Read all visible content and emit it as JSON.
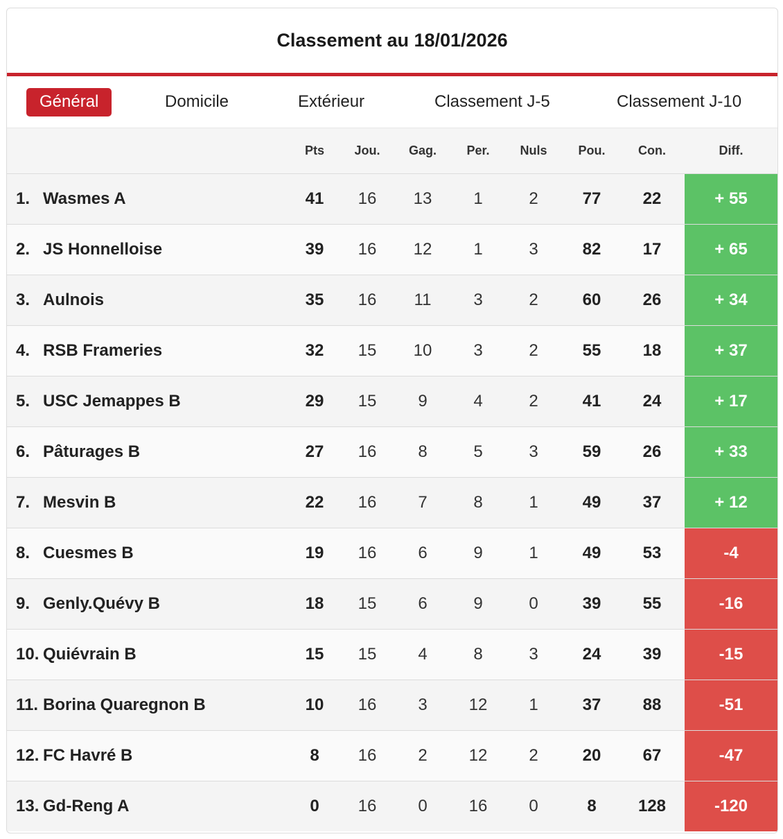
{
  "header": {
    "title": "Classement au 18/01/2026"
  },
  "tabs": [
    {
      "label": "Général",
      "active": true
    },
    {
      "label": "Domicile",
      "active": false
    },
    {
      "label": "Extérieur",
      "active": false
    },
    {
      "label": "Classement J-5",
      "active": false
    },
    {
      "label": "Classement J-10",
      "active": false
    }
  ],
  "colors": {
    "accent": "#c8232c",
    "positive": "#5cc266",
    "negative": "#de4e49"
  },
  "table": {
    "columns": [
      "Pts",
      "Jou.",
      "Gag.",
      "Per.",
      "Nuls",
      "Pou.",
      "Con.",
      "Diff."
    ],
    "rows": [
      {
        "rank": "1.",
        "team": "Wasmes A",
        "pts": "41",
        "jou": "16",
        "gag": "13",
        "per": "1",
        "nuls": "2",
        "pou": "77",
        "con": "22",
        "diff": "+ 55",
        "sign": "pos"
      },
      {
        "rank": "2.",
        "team": "JS Honnelloise",
        "pts": "39",
        "jou": "16",
        "gag": "12",
        "per": "1",
        "nuls": "3",
        "pou": "82",
        "con": "17",
        "diff": "+ 65",
        "sign": "pos"
      },
      {
        "rank": "3.",
        "team": "Aulnois",
        "pts": "35",
        "jou": "16",
        "gag": "11",
        "per": "3",
        "nuls": "2",
        "pou": "60",
        "con": "26",
        "diff": "+ 34",
        "sign": "pos"
      },
      {
        "rank": "4.",
        "team": "RSB Frameries",
        "pts": "32",
        "jou": "15",
        "gag": "10",
        "per": "3",
        "nuls": "2",
        "pou": "55",
        "con": "18",
        "diff": "+ 37",
        "sign": "pos"
      },
      {
        "rank": "5.",
        "team": "USC Jemappes B",
        "pts": "29",
        "jou": "15",
        "gag": "9",
        "per": "4",
        "nuls": "2",
        "pou": "41",
        "con": "24",
        "diff": "+ 17",
        "sign": "pos"
      },
      {
        "rank": "6.",
        "team": "Pâturages B",
        "pts": "27",
        "jou": "16",
        "gag": "8",
        "per": "5",
        "nuls": "3",
        "pou": "59",
        "con": "26",
        "diff": "+ 33",
        "sign": "pos"
      },
      {
        "rank": "7.",
        "team": "Mesvin B",
        "pts": "22",
        "jou": "16",
        "gag": "7",
        "per": "8",
        "nuls": "1",
        "pou": "49",
        "con": "37",
        "diff": "+ 12",
        "sign": "pos"
      },
      {
        "rank": "8.",
        "team": "Cuesmes B",
        "pts": "19",
        "jou": "16",
        "gag": "6",
        "per": "9",
        "nuls": "1",
        "pou": "49",
        "con": "53",
        "diff": "-4",
        "sign": "neg"
      },
      {
        "rank": "9.",
        "team": "Genly.Quévy B",
        "pts": "18",
        "jou": "15",
        "gag": "6",
        "per": "9",
        "nuls": "0",
        "pou": "39",
        "con": "55",
        "diff": "-16",
        "sign": "neg"
      },
      {
        "rank": "10.",
        "team": "Quiévrain B",
        "pts": "15",
        "jou": "15",
        "gag": "4",
        "per": "8",
        "nuls": "3",
        "pou": "24",
        "con": "39",
        "diff": "-15",
        "sign": "neg"
      },
      {
        "rank": "11.",
        "team": "Borina Quaregnon B",
        "pts": "10",
        "jou": "16",
        "gag": "3",
        "per": "12",
        "nuls": "1",
        "pou": "37",
        "con": "88",
        "diff": "-51",
        "sign": "neg"
      },
      {
        "rank": "12.",
        "team": "FC Havré B",
        "pts": "8",
        "jou": "16",
        "gag": "2",
        "per": "12",
        "nuls": "2",
        "pou": "20",
        "con": "67",
        "diff": "-47",
        "sign": "neg"
      },
      {
        "rank": "13.",
        "team": "Gd-Reng A",
        "pts": "0",
        "jou": "16",
        "gag": "0",
        "per": "16",
        "nuls": "0",
        "pou": "8",
        "con": "128",
        "diff": "-120",
        "sign": "neg"
      }
    ]
  }
}
